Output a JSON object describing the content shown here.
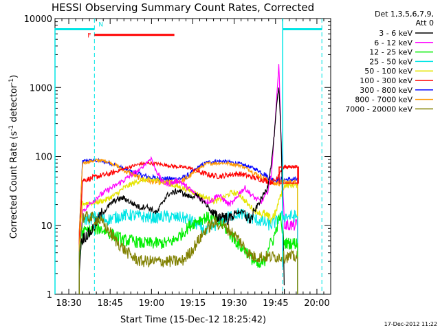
{
  "chart_data": {
    "type": "line",
    "title": "HESSI Observing Summary Count Rates, Corrected",
    "xlabel": "Start Time (15-Dec-12 18:25:42)",
    "ylabel_main": "Corrected Count Rate (s",
    "ylabel_sup1": "-1",
    "ylabel_mid": " detector",
    "ylabel_sup2": "-1",
    "ylabel_end": ")",
    "footer": "17-Dec-2012 11:22",
    "xlim_min": [
      0,
      100
    ],
    "ylim": [
      1,
      10000
    ],
    "yscale": "log",
    "x_ticks": [
      {
        "min": 5,
        "label": "18:30"
      },
      {
        "min": 20,
        "label": "18:45"
      },
      {
        "min": 35,
        "label": "19:00"
      },
      {
        "min": 50,
        "label": "19:15"
      },
      {
        "min": 65,
        "label": "19:30"
      },
      {
        "min": 80,
        "label": "19:45"
      },
      {
        "min": 95,
        "label": "20:00"
      }
    ],
    "y_ticks": [
      {
        "v": 1,
        "label": "1"
      },
      {
        "v": 10,
        "label": "10"
      },
      {
        "v": 100,
        "label": "100"
      },
      {
        "v": 1000,
        "label": "1000"
      },
      {
        "v": 10000,
        "label": "10000"
      }
    ],
    "legend_header": [
      "Det 1,3,5,6,7,9,",
      "Att 0"
    ],
    "flags": {
      "N_label": "N",
      "F_label": "F",
      "night_intervals": [
        [
          0,
          14.3
        ],
        [
          82.6,
          96.8
        ]
      ],
      "night_level": 7000,
      "flare_interval": [
        14.3,
        43.3
      ],
      "flare_level": 5800,
      "dashed_lines_min": [
        14.3,
        82.6,
        96.8
      ],
      "night_color": "#00e5e5",
      "flare_color": "#ff0000"
    },
    "attenuator_box": {
      "x": [
        81.3,
        88.3
      ],
      "y": [
        41,
        70
      ],
      "color": "#ff0000"
    },
    "series": [
      {
        "name": "3 - 6 keV",
        "color": "#000000",
        "x": [
          8.8,
          9.5,
          11,
          13,
          15,
          17,
          19,
          21,
          23,
          25,
          27,
          29,
          31,
          33,
          35,
          37,
          39,
          41,
          43,
          45,
          47,
          49,
          51,
          53,
          55,
          57,
          59,
          61,
          63,
          65,
          67,
          69,
          71,
          73,
          75,
          77,
          78.5,
          79.5,
          80.5,
          81.2,
          82,
          83.2
        ],
        "y": [
          2.0,
          6.0,
          7.0,
          8.0,
          11,
          15,
          18,
          22,
          24,
          25,
          22,
          20,
          18,
          19,
          17,
          15,
          22,
          28,
          30,
          32,
          28,
          26,
          27,
          24,
          20,
          15,
          13,
          14,
          12,
          15,
          16,
          14,
          12,
          18,
          25,
          35,
          80,
          200,
          600,
          1000,
          200,
          1.2
        ]
      },
      {
        "name": "6 - 12 keV",
        "color": "#ff00ff",
        "x": [
          8.8,
          10,
          13,
          16,
          19,
          22,
          25,
          28,
          31,
          33,
          35,
          36,
          37.5,
          39,
          41,
          43,
          45,
          47,
          49,
          51,
          53,
          55,
          57,
          59,
          61,
          63,
          65,
          67,
          69,
          71,
          73,
          75,
          77,
          78.5,
          79.5,
          80.5,
          81.2,
          82,
          83.2,
          86.5,
          88
        ],
        "y": [
          4.0,
          16,
          21,
          27,
          32,
          38,
          45,
          55,
          65,
          80,
          95,
          70,
          55,
          42,
          40,
          42,
          45,
          38,
          33,
          28,
          24,
          22,
          23,
          28,
          24,
          20,
          22,
          30,
          35,
          28,
          24,
          22,
          30,
          55,
          200,
          800,
          2200,
          200,
          10,
          10,
          10
        ]
      },
      {
        "name": "12 - 25 keV",
        "color": "#00ee00",
        "x": [
          8.8,
          10,
          13,
          16,
          19,
          22,
          25,
          28,
          31,
          34,
          37,
          40,
          43,
          46,
          49,
          52,
          55,
          58,
          61,
          64,
          67,
          70,
          72,
          74,
          76,
          77.5,
          79,
          80,
          81.5,
          83.2,
          86.5,
          88
        ],
        "y": [
          3.0,
          8.0,
          8.5,
          9.0,
          8.0,
          7.0,
          6.0,
          6.0,
          5.5,
          5.5,
          5.5,
          5.5,
          6.0,
          7.5,
          10,
          12,
          13,
          12,
          10,
          7.0,
          5.0,
          4.0,
          3.0,
          2.5,
          3.0,
          5.0,
          6.0,
          8.0,
          14,
          5.5,
          5.5,
          5.5
        ]
      },
      {
        "name": "25 - 50 keV",
        "color": "#00e5e5",
        "x": [
          8.8,
          10,
          13,
          16,
          19,
          22,
          25,
          28,
          31,
          34,
          37,
          40,
          43,
          46,
          49,
          52,
          55,
          58,
          61,
          64,
          67,
          70,
          73,
          76,
          78,
          80,
          81.5,
          83.2,
          86.5,
          88
        ],
        "y": [
          4.0,
          12,
          12.5,
          13,
          12,
          13,
          14,
          14,
          13.5,
          13,
          13,
          13.5,
          13,
          13,
          12,
          10,
          8.0,
          10,
          12,
          14,
          15,
          13,
          12,
          11,
          10,
          11,
          13,
          13.5,
          13.5,
          13.5
        ]
      },
      {
        "name": "50 - 100 keV",
        "color": "#e5e500",
        "x": [
          8.8,
          10,
          13,
          16,
          19,
          22,
          25,
          28,
          31,
          34,
          37,
          40,
          43,
          46,
          49,
          52,
          55,
          58,
          61,
          64,
          67,
          70,
          73,
          76,
          78,
          80,
          81.5,
          83.2,
          86.5,
          88
        ],
        "y": [
          5.0,
          21,
          21,
          22,
          24,
          28,
          35,
          40,
          45,
          46,
          45,
          42,
          38,
          35,
          32,
          28,
          25,
          22,
          25,
          30,
          28,
          20,
          16,
          14,
          12,
          15,
          25,
          38,
          38,
          38
        ]
      },
      {
        "name": "100 - 300 keV",
        "color": "#ff0000",
        "x": [
          8.8,
          10,
          13,
          16,
          19,
          22,
          25,
          28,
          31,
          34,
          37,
          40,
          43,
          46,
          49,
          52,
          55,
          58,
          61,
          64,
          67,
          70,
          73,
          76,
          78,
          80,
          81.5,
          83.2,
          86.5,
          88
        ],
        "y": [
          6.0,
          45,
          48,
          52,
          55,
          60,
          66,
          72,
          78,
          80,
          78,
          75,
          72,
          70,
          68,
          60,
          55,
          52,
          52,
          55,
          56,
          52,
          48,
          45,
          42,
          45,
          60,
          70,
          70,
          70
        ]
      },
      {
        "name": "300 - 800 keV",
        "color": "#0000ff",
        "x": [
          8.8,
          10,
          13,
          16,
          19,
          22,
          25,
          28,
          31,
          34,
          37,
          40,
          43,
          46,
          49,
          52,
          55,
          58,
          61,
          64,
          67,
          70,
          73,
          76,
          78,
          80,
          81.5,
          83.2,
          86.5,
          88
        ],
        "y": [
          8.0,
          85,
          88,
          86,
          82,
          75,
          66,
          60,
          54,
          50,
          48,
          47,
          47,
          48,
          55,
          70,
          82,
          85,
          85,
          82,
          78,
          72,
          65,
          55,
          48,
          45,
          46,
          46,
          46,
          46
        ]
      },
      {
        "name": "800 - 7000 keV",
        "color": "#ff9900",
        "x": [
          8.8,
          10,
          13,
          16,
          19,
          22,
          25,
          28,
          31,
          34,
          37,
          40,
          43,
          46,
          49,
          52,
          55,
          58,
          61,
          64,
          67,
          70,
          73,
          76,
          78,
          80,
          81.5,
          83.2,
          86.5,
          88
        ],
        "y": [
          8.0,
          80,
          85,
          88,
          85,
          75,
          62,
          55,
          48,
          44,
          42,
          42,
          42,
          44,
          52,
          66,
          78,
          80,
          80,
          78,
          74,
          66,
          55,
          48,
          42,
          40,
          41,
          42,
          42,
          42
        ]
      },
      {
        "name": "7000 - 20000 keV",
        "color": "#808000",
        "x": [
          8.8,
          10,
          13,
          16,
          19,
          22,
          25,
          28,
          31,
          34,
          37,
          40,
          43,
          46,
          49,
          52,
          55,
          58,
          61,
          64,
          67,
          70,
          72,
          74,
          76,
          78,
          80,
          81.5,
          83.2,
          86.5,
          88
        ],
        "y": [
          4.0,
          13,
          13,
          12,
          9.0,
          6.0,
          4.5,
          3.5,
          3.0,
          3.0,
          3.0,
          3.0,
          3.0,
          3.0,
          4.0,
          6.0,
          9.0,
          11,
          10,
          8.0,
          6.0,
          4.0,
          3.5,
          3.5,
          3.5,
          3.5,
          3.5,
          3.5,
          3.5,
          3.5,
          3.5
        ]
      }
    ]
  }
}
